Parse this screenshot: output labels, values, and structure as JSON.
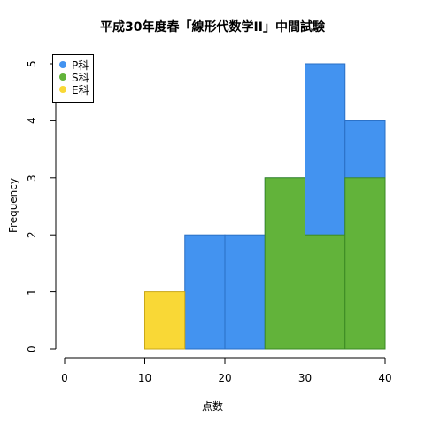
{
  "chart_data": {
    "type": "bar",
    "title": "平成30年度春「線形代数学II」中間試験",
    "xlabel": "点数",
    "ylabel": "Frequency",
    "bin_edges": [
      0,
      5,
      10,
      15,
      20,
      25,
      30,
      35,
      40
    ],
    "xlim": [
      0,
      40
    ],
    "ylim": [
      0,
      5
    ],
    "xticks": [
      "0",
      "10",
      "20",
      "30",
      "40"
    ],
    "yticks": [
      "0",
      "1",
      "2",
      "3",
      "4",
      "5"
    ],
    "grid": false,
    "legend_position": "top-left",
    "series": [
      {
        "name": "P科",
        "color": "#4393f0",
        "border": "#2a6fc4",
        "values": [
          0,
          0,
          0,
          2,
          2,
          3,
          5,
          4
        ]
      },
      {
        "name": "S科",
        "color": "#62b33a",
        "border": "#3b8a24",
        "values": [
          0,
          0,
          0,
          0,
          0,
          3,
          2,
          3
        ]
      },
      {
        "name": "E科",
        "color": "#f9d836",
        "border": "#c9a81a",
        "values": [
          0,
          0,
          1,
          0,
          0,
          0,
          0,
          0
        ]
      }
    ],
    "draw_order": [
      "P科",
      "E科",
      "S科"
    ]
  }
}
